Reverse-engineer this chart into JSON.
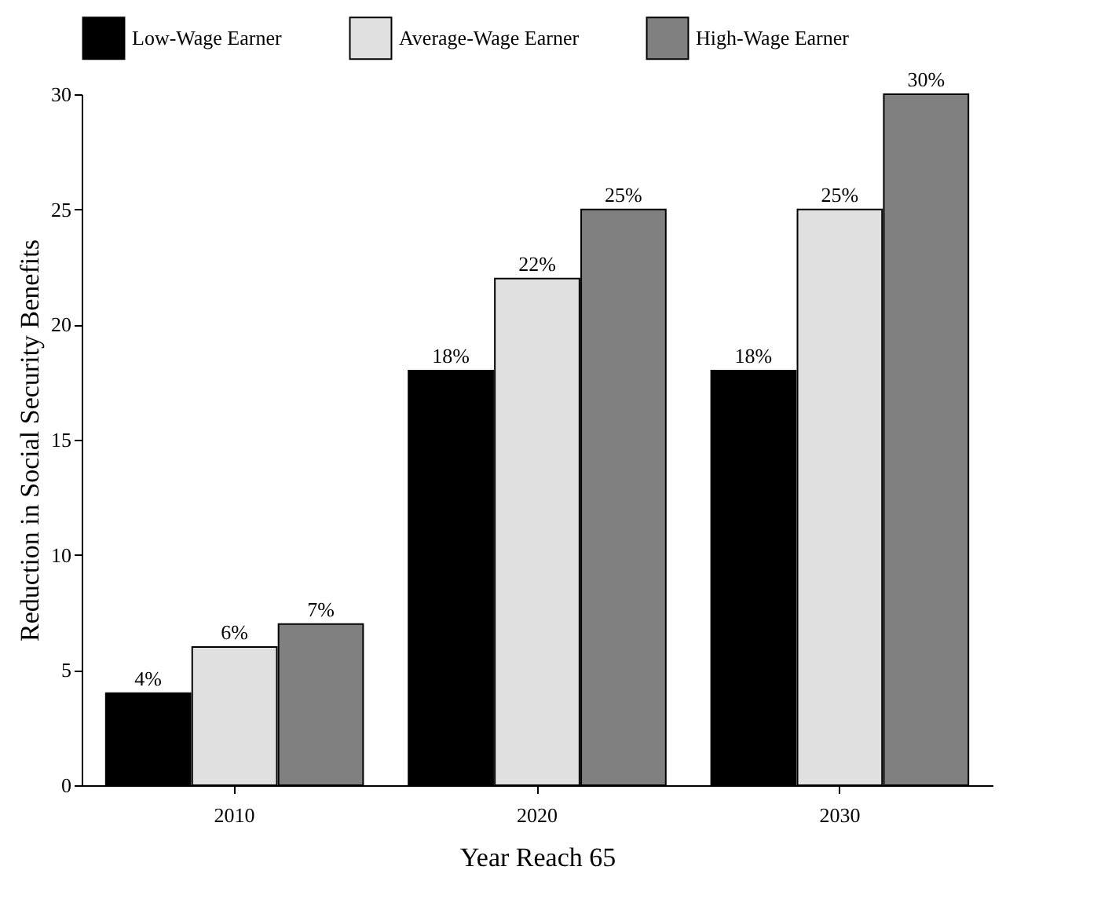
{
  "chart_data": {
    "type": "bar",
    "xlabel": "Year Reach 65",
    "ylabel": "Reduction in Social Security Benefits",
    "categories": [
      "2010",
      "2020",
      "2030"
    ],
    "series": [
      {
        "name": "Low-Wage Earner",
        "color": "#000000",
        "values": [
          4,
          18,
          18
        ],
        "value_labels": [
          "4%",
          "18%",
          "18%"
        ]
      },
      {
        "name": "Average-Wage Earner",
        "color": "#e0e0e0",
        "values": [
          6,
          22,
          25
        ],
        "value_labels": [
          "6%",
          "22%",
          "25%"
        ]
      },
      {
        "name": "High-Wage Earner",
        "color": "#808080",
        "values": [
          7,
          25,
          30
        ],
        "value_labels": [
          "7%",
          "25%",
          "30%"
        ]
      }
    ],
    "ylim": [
      0,
      30
    ],
    "yticks": [
      0,
      5,
      10,
      15,
      20,
      25,
      30
    ],
    "grid": false,
    "legend": "top"
  }
}
